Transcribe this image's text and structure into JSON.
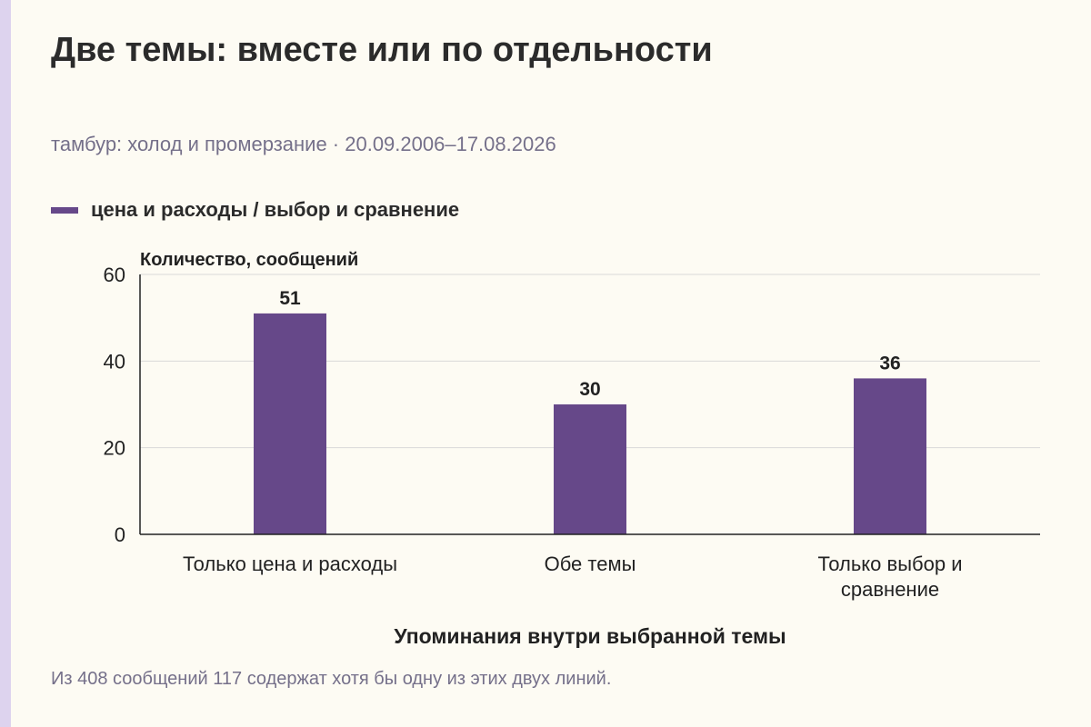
{
  "title": "Две темы: вместе или по отдельности",
  "subtitle": "тамбур: холод и промерзание · 20.09.2006–17.08.2026",
  "footnote": "Из 408 сообщений 117 содержат хотя бы одну из этих двух линий.",
  "colors": {
    "bar": "#664889",
    "accent_strip": "#ddd3ee",
    "background": "#fdfbf3",
    "gridline": "#d9d9d9",
    "axis": "#222222"
  },
  "chart_data": {
    "type": "bar",
    "categories": [
      [
        "Только цена и расходы"
      ],
      [
        "Обе темы"
      ],
      [
        "Только выбор и",
        "сравнение"
      ]
    ],
    "series": [
      {
        "name": "цена и расходы / выбор и сравнение",
        "values": [
          51,
          30,
          36
        ]
      }
    ],
    "data_labels": [
      "51",
      "30",
      "36"
    ],
    "xlabel": "Упоминания внутри выбранной темы",
    "ylabel": "Количество, сообщений",
    "ylim": [
      0,
      60
    ],
    "yticks": [
      0,
      20,
      40,
      60
    ],
    "grid": true,
    "legend_position": "top-left"
  }
}
